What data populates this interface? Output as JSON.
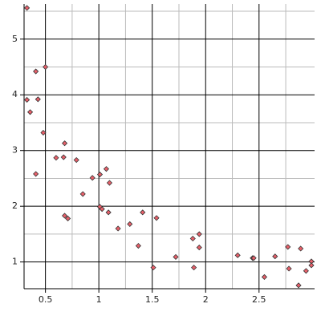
{
  "chart_data": {
    "type": "scatter",
    "x": [
      0.327,
      0.327,
      0.357,
      0.41,
      0.43,
      0.5,
      0.41,
      0.48,
      0.6,
      0.68,
      0.67,
      0.79,
      0.68,
      0.71,
      0.85,
      0.94,
      1.01,
      1.07,
      1.1,
      1.01,
      1.03,
      1.09,
      1.18,
      1.29,
      1.41,
      1.37,
      1.54,
      1.51,
      1.72,
      1.88,
      1.94,
      1.94,
      1.89,
      2.3,
      2.44,
      2.45,
      2.55,
      2.65,
      2.77,
      2.78,
      2.89,
      2.87,
      2.94,
      2.99,
      2.99
    ],
    "values": [
      5.56,
      3.91,
      3.69,
      4.42,
      3.92,
      4.5,
      2.58,
      3.32,
      2.87,
      3.13,
      2.88,
      2.83,
      1.83,
      1.78,
      2.22,
      2.51,
      2.57,
      2.67,
      2.42,
      1.99,
      1.95,
      1.89,
      1.6,
      1.68,
      1.89,
      1.29,
      1.79,
      0.9,
      1.09,
      1.42,
      1.5,
      1.26,
      0.9,
      1.12,
      1.07,
      1.07,
      0.73,
      1.1,
      1.27,
      0.88,
      1.24,
      0.58,
      0.84,
      1.01,
      0.94
    ],
    "color": "#e8606a",
    "xlim": [
      0.3,
      3.02
    ],
    "ylim": [
      0.52,
      5.63
    ],
    "xticks": [
      0.5,
      1,
      1.5,
      2,
      2.5
    ],
    "yticks": [
      1,
      2,
      3,
      4,
      5
    ],
    "xminorticks": [
      0.75,
      1.25,
      1.75,
      2.25,
      2.75
    ],
    "yminorticks": [
      1.5,
      2.5,
      3.5,
      4.5,
      5.5
    ],
    "grid": true
  }
}
